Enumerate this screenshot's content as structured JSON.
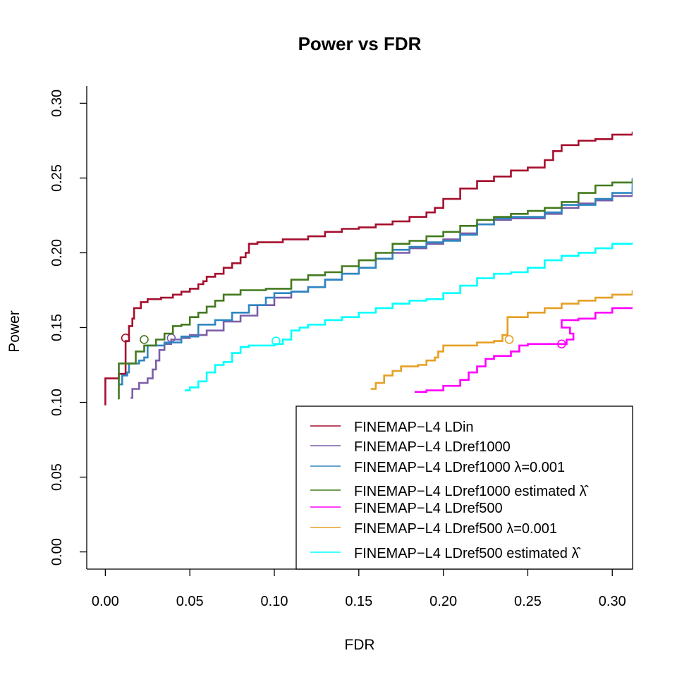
{
  "chart_data": {
    "type": "line",
    "title": "Power vs FDR",
    "xlabel": "FDR",
    "ylabel": "Power",
    "xlim": [
      -0.011,
      0.312
    ],
    "ylim": [
      -0.0115,
      0.3115
    ],
    "xticks": [
      "0.00",
      "0.05",
      "0.10",
      "0.15",
      "0.20",
      "0.25",
      "0.30"
    ],
    "yticks": [
      "0.00",
      "0.05",
      "0.10",
      "0.15",
      "0.20",
      "0.25",
      "0.30"
    ],
    "grid": false,
    "legend_position": "bottom-right",
    "series": [
      {
        "name": "FINEMAP−L4 LDin",
        "color": "#a50f2d",
        "marker": [
          0.012,
          0.143
        ],
        "points": [
          [
            0.0,
            0.098
          ],
          [
            0.0,
            0.116
          ],
          [
            0.006,
            0.116
          ],
          [
            0.008,
            0.119
          ],
          [
            0.012,
            0.12
          ],
          [
            0.012,
            0.141
          ],
          [
            0.014,
            0.151
          ],
          [
            0.016,
            0.156
          ],
          [
            0.017,
            0.163
          ],
          [
            0.02,
            0.163
          ],
          [
            0.021,
            0.167
          ],
          [
            0.025,
            0.169
          ],
          [
            0.033,
            0.17
          ],
          [
            0.04,
            0.172
          ],
          [
            0.045,
            0.174
          ],
          [
            0.05,
            0.176
          ],
          [
            0.055,
            0.179
          ],
          [
            0.058,
            0.181
          ],
          [
            0.06,
            0.184
          ],
          [
            0.065,
            0.186
          ],
          [
            0.07,
            0.19
          ],
          [
            0.075,
            0.193
          ],
          [
            0.08,
            0.197
          ],
          [
            0.083,
            0.2
          ],
          [
            0.085,
            0.206
          ],
          [
            0.09,
            0.207
          ],
          [
            0.1,
            0.207
          ],
          [
            0.105,
            0.209
          ],
          [
            0.12,
            0.211
          ],
          [
            0.13,
            0.214
          ],
          [
            0.14,
            0.216
          ],
          [
            0.15,
            0.217
          ],
          [
            0.16,
            0.219
          ],
          [
            0.17,
            0.221
          ],
          [
            0.18,
            0.224
          ],
          [
            0.19,
            0.227
          ],
          [
            0.195,
            0.23
          ],
          [
            0.2,
            0.236
          ],
          [
            0.21,
            0.243
          ],
          [
            0.22,
            0.248
          ],
          [
            0.23,
            0.251
          ],
          [
            0.24,
            0.255
          ],
          [
            0.25,
            0.257
          ],
          [
            0.26,
            0.262
          ],
          [
            0.265,
            0.268
          ],
          [
            0.27,
            0.272
          ],
          [
            0.28,
            0.275
          ],
          [
            0.29,
            0.276
          ],
          [
            0.3,
            0.279
          ],
          [
            0.312,
            0.281
          ]
        ]
      },
      {
        "name": "FINEMAP−L4 LDref1000",
        "color": "#7b5ea8",
        "marker": [
          0.039,
          0.143
        ],
        "points": [
          [
            0.015,
            0.103
          ],
          [
            0.016,
            0.109
          ],
          [
            0.02,
            0.113
          ],
          [
            0.025,
            0.116
          ],
          [
            0.028,
            0.122
          ],
          [
            0.03,
            0.128
          ],
          [
            0.032,
            0.135
          ],
          [
            0.035,
            0.139
          ],
          [
            0.039,
            0.142
          ],
          [
            0.045,
            0.143
          ],
          [
            0.05,
            0.145
          ],
          [
            0.06,
            0.148
          ],
          [
            0.07,
            0.154
          ],
          [
            0.08,
            0.158
          ],
          [
            0.09,
            0.165
          ],
          [
            0.1,
            0.17
          ],
          [
            0.11,
            0.174
          ],
          [
            0.12,
            0.177
          ],
          [
            0.13,
            0.182
          ],
          [
            0.14,
            0.186
          ],
          [
            0.15,
            0.19
          ],
          [
            0.16,
            0.196
          ],
          [
            0.17,
            0.2
          ],
          [
            0.18,
            0.203
          ],
          [
            0.19,
            0.206
          ],
          [
            0.2,
            0.209
          ],
          [
            0.21,
            0.213
          ],
          [
            0.22,
            0.219
          ],
          [
            0.23,
            0.222
          ],
          [
            0.24,
            0.223
          ],
          [
            0.26,
            0.226
          ],
          [
            0.27,
            0.23
          ],
          [
            0.28,
            0.233
          ],
          [
            0.29,
            0.235
          ],
          [
            0.3,
            0.238
          ],
          [
            0.312,
            0.244
          ]
        ]
      },
      {
        "name": "FINEMAP−L4 LDref1000 λ=0.001",
        "color": "#2e86c1",
        "marker": null,
        "points": [
          [
            0.008,
            0.112
          ],
          [
            0.01,
            0.118
          ],
          [
            0.013,
            0.12
          ],
          [
            0.014,
            0.126
          ],
          [
            0.02,
            0.128
          ],
          [
            0.023,
            0.13
          ],
          [
            0.025,
            0.138
          ],
          [
            0.035,
            0.14
          ],
          [
            0.045,
            0.144
          ],
          [
            0.055,
            0.152
          ],
          [
            0.065,
            0.155
          ],
          [
            0.075,
            0.16
          ],
          [
            0.085,
            0.165
          ],
          [
            0.095,
            0.17
          ],
          [
            0.1,
            0.173
          ],
          [
            0.11,
            0.174
          ],
          [
            0.12,
            0.177
          ],
          [
            0.13,
            0.182
          ],
          [
            0.14,
            0.186
          ],
          [
            0.15,
            0.19
          ],
          [
            0.16,
            0.196
          ],
          [
            0.17,
            0.202
          ],
          [
            0.18,
            0.204
          ],
          [
            0.19,
            0.207
          ],
          [
            0.2,
            0.208
          ],
          [
            0.21,
            0.212
          ],
          [
            0.22,
            0.219
          ],
          [
            0.23,
            0.223
          ],
          [
            0.24,
            0.224
          ],
          [
            0.26,
            0.227
          ],
          [
            0.27,
            0.232
          ],
          [
            0.29,
            0.236
          ],
          [
            0.3,
            0.24
          ],
          [
            0.312,
            0.25
          ]
        ]
      },
      {
        "name": "FINEMAP−L4 LDref1000 estimated λ",
        "color": "#437a1f",
        "marker": [
          0.023,
          0.142
        ],
        "points": [
          [
            0.008,
            0.102
          ],
          [
            0.008,
            0.126
          ],
          [
            0.015,
            0.126
          ],
          [
            0.018,
            0.134
          ],
          [
            0.023,
            0.138
          ],
          [
            0.03,
            0.142
          ],
          [
            0.035,
            0.146
          ],
          [
            0.04,
            0.151
          ],
          [
            0.045,
            0.152
          ],
          [
            0.05,
            0.157
          ],
          [
            0.055,
            0.16
          ],
          [
            0.06,
            0.164
          ],
          [
            0.065,
            0.168
          ],
          [
            0.07,
            0.172
          ],
          [
            0.08,
            0.175
          ],
          [
            0.095,
            0.176
          ],
          [
            0.11,
            0.182
          ],
          [
            0.12,
            0.185
          ],
          [
            0.13,
            0.187
          ],
          [
            0.14,
            0.191
          ],
          [
            0.15,
            0.195
          ],
          [
            0.16,
            0.2
          ],
          [
            0.17,
            0.206
          ],
          [
            0.18,
            0.208
          ],
          [
            0.19,
            0.211
          ],
          [
            0.2,
            0.214
          ],
          [
            0.21,
            0.218
          ],
          [
            0.22,
            0.222
          ],
          [
            0.23,
            0.224
          ],
          [
            0.24,
            0.226
          ],
          [
            0.25,
            0.228
          ],
          [
            0.26,
            0.23
          ],
          [
            0.27,
            0.234
          ],
          [
            0.28,
            0.24
          ],
          [
            0.29,
            0.245
          ],
          [
            0.3,
            0.247
          ],
          [
            0.312,
            0.249
          ]
        ]
      },
      {
        "name": "FINEMAP−L4 LDref500",
        "color": "#ff00ff",
        "marker": [
          0.27,
          0.139
        ],
        "points": [
          [
            0.183,
            0.107
          ],
          [
            0.19,
            0.108
          ],
          [
            0.2,
            0.111
          ],
          [
            0.21,
            0.115
          ],
          [
            0.215,
            0.12
          ],
          [
            0.22,
            0.124
          ],
          [
            0.225,
            0.129
          ],
          [
            0.23,
            0.131
          ],
          [
            0.24,
            0.134
          ],
          [
            0.245,
            0.138
          ],
          [
            0.25,
            0.139
          ],
          [
            0.26,
            0.139
          ],
          [
            0.27,
            0.139
          ],
          [
            0.273,
            0.142
          ],
          [
            0.277,
            0.146
          ],
          [
            0.275,
            0.15
          ],
          [
            0.27,
            0.155
          ],
          [
            0.28,
            0.156
          ],
          [
            0.29,
            0.16
          ],
          [
            0.3,
            0.163
          ],
          [
            0.312,
            0.163
          ]
        ]
      },
      {
        "name": "FINEMAP−L4 LDref500 λ=0.001",
        "color": "#e69f24",
        "marker": [
          0.239,
          0.142
        ],
        "points": [
          [
            0.157,
            0.109
          ],
          [
            0.16,
            0.113
          ],
          [
            0.165,
            0.118
          ],
          [
            0.17,
            0.121
          ],
          [
            0.175,
            0.124
          ],
          [
            0.185,
            0.125
          ],
          [
            0.19,
            0.128
          ],
          [
            0.195,
            0.13
          ],
          [
            0.197,
            0.134
          ],
          [
            0.2,
            0.138
          ],
          [
            0.21,
            0.138
          ],
          [
            0.22,
            0.14
          ],
          [
            0.23,
            0.141
          ],
          [
            0.235,
            0.145
          ],
          [
            0.238,
            0.151
          ],
          [
            0.238,
            0.157
          ],
          [
            0.245,
            0.157
          ],
          [
            0.25,
            0.16
          ],
          [
            0.26,
            0.163
          ],
          [
            0.27,
            0.166
          ],
          [
            0.28,
            0.168
          ],
          [
            0.29,
            0.17
          ],
          [
            0.3,
            0.172
          ],
          [
            0.312,
            0.175
          ]
        ]
      },
      {
        "name": "FINEMAP−L4 LDref500 estimated λ",
        "color": "#00ffff",
        "marker": [
          0.101,
          0.141
        ],
        "points": [
          [
            0.047,
            0.108
          ],
          [
            0.05,
            0.11
          ],
          [
            0.055,
            0.114
          ],
          [
            0.06,
            0.12
          ],
          [
            0.065,
            0.125
          ],
          [
            0.07,
            0.127
          ],
          [
            0.075,
            0.133
          ],
          [
            0.08,
            0.137
          ],
          [
            0.085,
            0.138
          ],
          [
            0.1,
            0.139
          ],
          [
            0.105,
            0.142
          ],
          [
            0.11,
            0.148
          ],
          [
            0.115,
            0.15
          ],
          [
            0.12,
            0.152
          ],
          [
            0.13,
            0.155
          ],
          [
            0.14,
            0.157
          ],
          [
            0.15,
            0.16
          ],
          [
            0.16,
            0.163
          ],
          [
            0.17,
            0.166
          ],
          [
            0.18,
            0.168
          ],
          [
            0.19,
            0.169
          ],
          [
            0.2,
            0.173
          ],
          [
            0.21,
            0.178
          ],
          [
            0.22,
            0.183
          ],
          [
            0.23,
            0.186
          ],
          [
            0.24,
            0.187
          ],
          [
            0.25,
            0.19
          ],
          [
            0.26,
            0.195
          ],
          [
            0.27,
            0.198
          ],
          [
            0.28,
            0.2
          ],
          [
            0.29,
            0.203
          ],
          [
            0.3,
            0.206
          ],
          [
            0.312,
            0.207
          ]
        ]
      }
    ]
  }
}
